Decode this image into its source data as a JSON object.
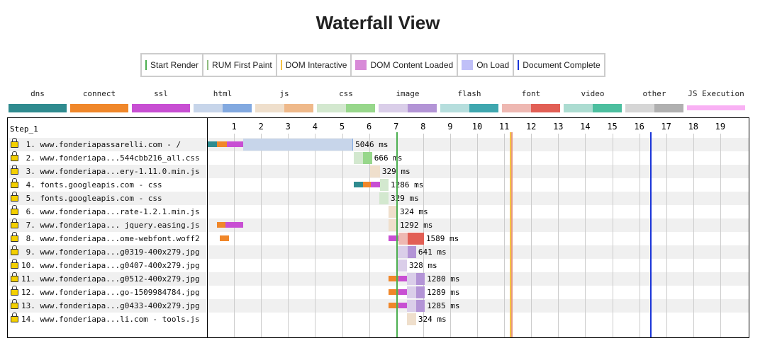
{
  "title": "Waterfall View",
  "legend": [
    {
      "label": "Start Render",
      "color": "#4caf50",
      "kind": "line"
    },
    {
      "label": "RUM First Paint",
      "color": "#8fbc7f",
      "kind": "line"
    },
    {
      "label": "DOM Interactive",
      "color": "#f5c242",
      "kind": "line"
    },
    {
      "label": "DOM Content Loaded",
      "color": "#d88ad8",
      "kind": "box"
    },
    {
      "label": "On Load",
      "color": "#c0c0f8",
      "kind": "box"
    },
    {
      "label": "Document Complete",
      "color": "#1a35d8",
      "kind": "line"
    }
  ],
  "types": [
    {
      "label": "dns",
      "colors": [
        "#2f8b8f"
      ]
    },
    {
      "label": "connect",
      "colors": [
        "#f0872a"
      ]
    },
    {
      "label": "ssl",
      "colors": [
        "#c84fd3"
      ]
    },
    {
      "label": "html",
      "colors": [
        "#c7d5ea",
        "#82a9e0"
      ]
    },
    {
      "label": "js",
      "colors": [
        "#efdfcc",
        "#efb98a"
      ]
    },
    {
      "label": "css",
      "colors": [
        "#d3e8cf",
        "#97d78b"
      ]
    },
    {
      "label": "image",
      "colors": [
        "#dacee9",
        "#b394d6"
      ]
    },
    {
      "label": "flash",
      "colors": [
        "#b6dedd",
        "#3fa7af"
      ]
    },
    {
      "label": "font",
      "colors": [
        "#eeb8b2",
        "#e25f55"
      ]
    },
    {
      "label": "video",
      "colors": [
        "#acdcd1",
        "#4cbf9f"
      ]
    },
    {
      "label": "other",
      "colors": [
        "#d6d6d6",
        "#b0b0b0"
      ]
    },
    {
      "label": "JS Execution",
      "colors": [
        "#f9b1f4"
      ]
    }
  ],
  "step": "Step_1",
  "ticks": [
    1,
    2,
    3,
    4,
    5,
    6,
    7,
    8,
    9,
    10,
    11,
    12,
    13,
    14,
    15,
    16,
    17,
    18,
    19
  ],
  "markers": [
    {
      "name": "start-render",
      "time": 7.0,
      "color": "#4caf50"
    },
    {
      "name": "dom-interactive",
      "time": 11.2,
      "color": "#f5c242"
    },
    {
      "name": "dom-content-loaded",
      "time": 11.25,
      "color": "#e89a80"
    },
    {
      "name": "document-complete",
      "time": 16.4,
      "color": "#1a35d8"
    }
  ],
  "requests": [
    {
      "label": " 1. www.fonderiapassarelli.com - /",
      "duration": "5046 ms",
      "segments": [
        [
          0,
          0.37,
          "dns"
        ],
        [
          0.37,
          0.73,
          "connect"
        ],
        [
          0.73,
          1.34,
          "ssl"
        ],
        [
          1.34,
          5.38,
          "html0"
        ],
        [
          5.38,
          5.41,
          "html1"
        ]
      ]
    },
    {
      "label": " 2. www.fonderiapa...544cbb216_all.css",
      "duration": "666 ms",
      "segments": [
        [
          5.43,
          5.77,
          "css0"
        ],
        [
          5.77,
          6.11,
          "css1"
        ]
      ]
    },
    {
      "label": " 3. www.fonderiapa...ery-1.11.0.min.js",
      "duration": "329 ms",
      "segments": [
        [
          6.04,
          6.4,
          "js0"
        ]
      ]
    },
    {
      "label": " 4. fonts.googleapis.com - css",
      "duration": "1286 ms",
      "segments": [
        [
          5.43,
          5.77,
          "dns"
        ],
        [
          5.77,
          6.06,
          "connect"
        ],
        [
          6.06,
          6.4,
          "ssl"
        ],
        [
          6.4,
          6.72,
          "css0"
        ]
      ]
    },
    {
      "label": " 5. fonts.googleapis.com - css",
      "duration": "329 ms",
      "segments": [
        [
          6.38,
          6.72,
          "css0"
        ]
      ]
    },
    {
      "label": " 6. www.fonderiapa...rate-1.2.1.min.js",
      "duration": "324 ms",
      "segments": [
        [
          6.72,
          7.06,
          "js0"
        ]
      ]
    },
    {
      "label": " 7. www.fonderiapa... jquery.easing.js",
      "duration": "1292 ms",
      "segments": [
        [
          0.37,
          0.68,
          "connect"
        ],
        [
          0.68,
          1.34,
          "ssl"
        ],
        [
          6.72,
          7.06,
          "js0"
        ]
      ]
    },
    {
      "label": " 8. www.fonderiapa...ome-webfont.woff2",
      "duration": "1589 ms",
      "segments": [
        [
          0.47,
          0.81,
          "connect"
        ],
        [
          6.72,
          7.09,
          "ssl"
        ],
        [
          7.09,
          7.43,
          "font0"
        ],
        [
          7.43,
          8.03,
          "font1"
        ]
      ]
    },
    {
      "label": " 9. www.fonderiapa...g0319-400x279.jpg",
      "duration": "641 ms",
      "segments": [
        [
          7.06,
          7.43,
          "image0"
        ],
        [
          7.43,
          7.74,
          "image1"
        ]
      ]
    },
    {
      "label": "10. www.fonderiapa...g0407-400x279.jpg",
      "duration": "328 ms",
      "segments": [
        [
          7.06,
          7.4,
          "image0"
        ]
      ]
    },
    {
      "label": "11. www.fonderiapa...g0512-400x279.jpg",
      "duration": "1280 ms",
      "segments": [
        [
          6.72,
          7.09,
          "connect"
        ],
        [
          7.09,
          7.4,
          "ssl"
        ],
        [
          7.4,
          7.74,
          "image0"
        ],
        [
          7.74,
          8.06,
          "image1"
        ]
      ]
    },
    {
      "label": "12. www.fonderiapa...go-1509984784.jpg",
      "duration": "1289 ms",
      "segments": [
        [
          6.72,
          7.09,
          "connect"
        ],
        [
          7.09,
          7.4,
          "ssl"
        ],
        [
          7.4,
          7.74,
          "image0"
        ],
        [
          7.74,
          8.06,
          "image1"
        ]
      ]
    },
    {
      "label": "13. www.fonderiapa...g0433-400x279.jpg",
      "duration": "1285 ms",
      "segments": [
        [
          6.72,
          7.09,
          "connect"
        ],
        [
          7.09,
          7.4,
          "ssl"
        ],
        [
          7.4,
          7.74,
          "image0"
        ],
        [
          7.74,
          8.06,
          "image1"
        ]
      ]
    },
    {
      "label": "14. www.fonderiapa...li.com - tools.js",
      "duration": "324 ms",
      "segments": [
        [
          7.4,
          7.74,
          "js0"
        ]
      ]
    }
  ]
}
